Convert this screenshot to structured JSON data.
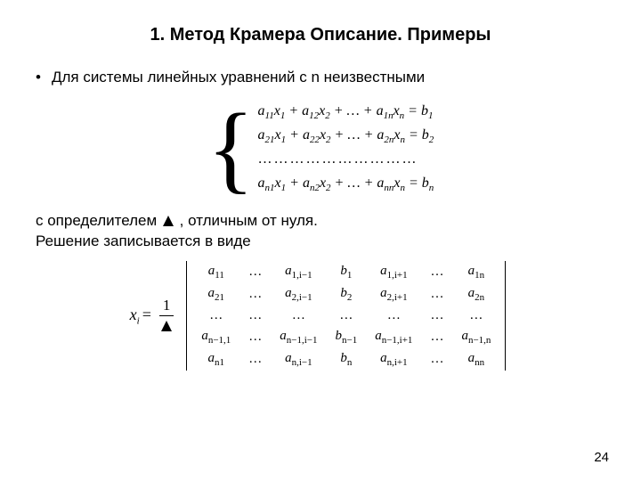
{
  "title": "1. Метод Крамера Описание. Примеры",
  "bullet": "•",
  "intro": "Для системы линейных уравнений с n неизвестными",
  "star_label": "(*)",
  "system": {
    "rows": [
      "a₁₁x₁ + a₁₂x₂ + … + a₁ₙxₙ = b₁",
      "a₂₁x₁ + a₂₂x₂ + … + a₂ₙxₙ = b₂",
      "…………………………",
      "aₙ₁x₁ + aₙ₂x₂ + … + aₙₙxₙ = bₙ"
    ],
    "brace_color": "#000000",
    "font_family": "Times New Roman",
    "row_fontsize": 16
  },
  "para_before_triangle": "с определителем",
  "para_after_triangle": ", отличным от нуля.",
  "para_line2": "Решение записывается в  виде",
  "triangle_symbol": "Δ",
  "formula": {
    "lhs": "xᵢ =",
    "frac_num": "1",
    "frac_den": "Δ",
    "matrix": {
      "rows": [
        [
          "a₁₁",
          "…",
          "a₁,ᵢ₋₁",
          "b₁",
          "a₁,ᵢ₊₁",
          "…",
          "a₁ₙ"
        ],
        [
          "a₂₁",
          "…",
          "a₂,ᵢ₋₁",
          "b₂",
          "a₂,ᵢ₊₁",
          "…",
          "a₂ₙ"
        ],
        [
          "…",
          "…",
          "…",
          "…",
          "…",
          "…",
          "…"
        ],
        [
          "aₙ₋₁,₁",
          "…",
          "aₙ₋₁,ᵢ₋₁",
          "bₙ₋₁",
          "aₙ₋₁,ᵢ₊₁",
          "…",
          "aₙ₋₁,ₙ"
        ],
        [
          "aₙ₁",
          "…",
          "aₙ,ᵢ₋₁",
          "bₙ",
          "aₙ,ᵢ₊₁",
          "…",
          "aₙₙ"
        ]
      ]
    }
  },
  "page_number": "24",
  "colors": {
    "background": "#ffffff",
    "text": "#000000"
  },
  "typography": {
    "title_fontsize": 20,
    "title_weight": "bold",
    "body_fontsize": 17,
    "math_font": "Times New Roman"
  }
}
